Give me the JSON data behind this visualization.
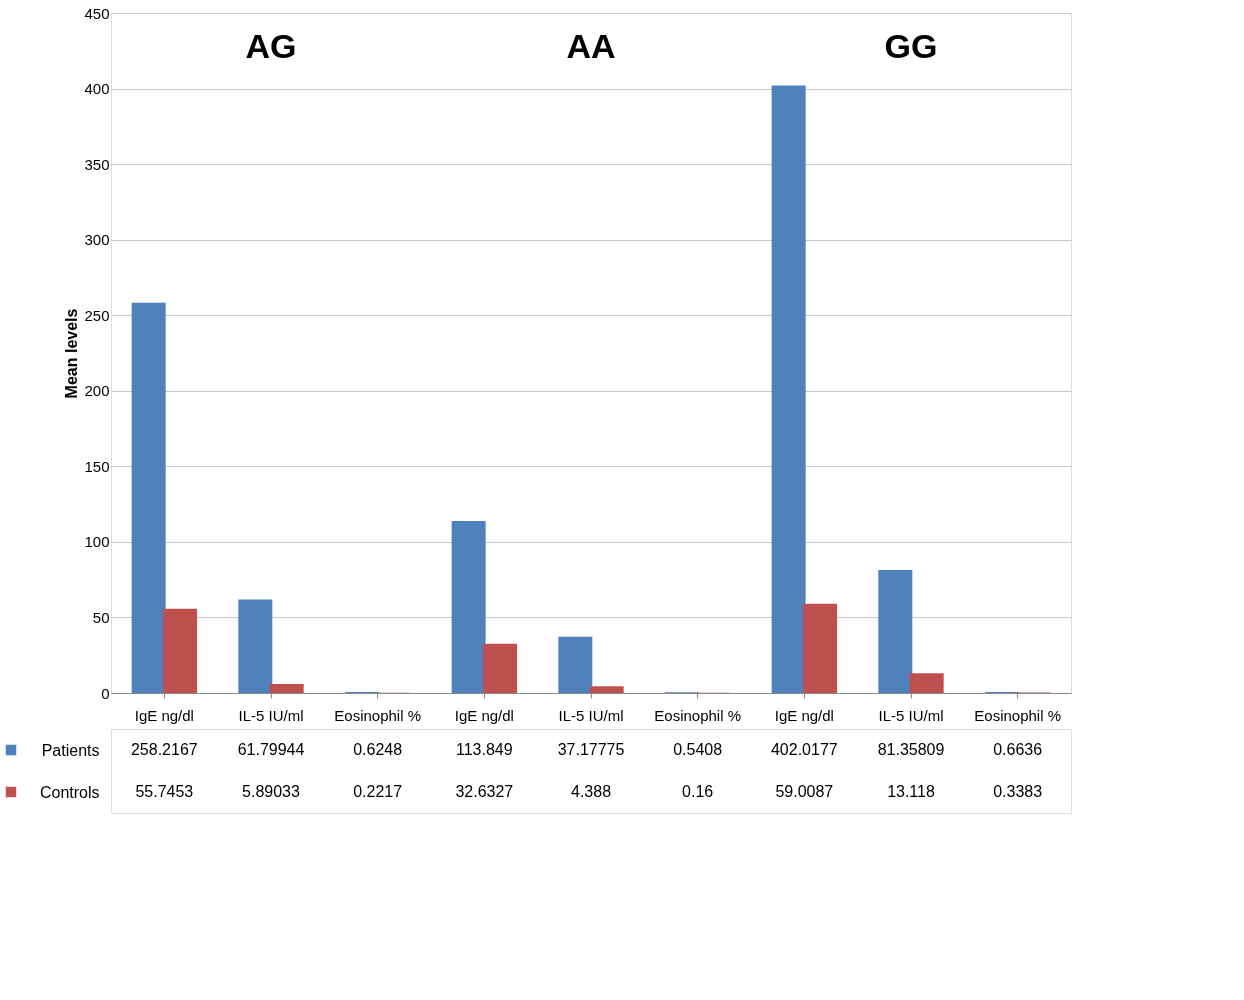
{
  "chart_data": {
    "type": "bar",
    "ylabel": "Mean levels",
    "categories": [
      "IgE ng/dl",
      "IL-5 IU/ml",
      "Eosinophil %",
      "IgE ng/dl",
      "IL-5 IU/ml",
      "Eosinophil %",
      "IgE ng/dl",
      "IL-5 IU/ml",
      "Eosinophil %"
    ],
    "series": [
      {
        "name": "Patients",
        "color": "#4f81bd",
        "values": [
          258.2167,
          61.79944,
          0.6248,
          113.849,
          37.17775,
          0.5408,
          402.0177,
          81.35809,
          0.6636
        ]
      },
      {
        "name": "Controls",
        "color": "#c0504d",
        "values": [
          55.7453,
          5.89033,
          0.2217,
          32.6327,
          4.388,
          0.16,
          59.0087,
          13.118,
          0.3383
        ]
      }
    ],
    "annotations": [
      "AG",
      "AA",
      "GG"
    ],
    "ylim": [
      0,
      450
    ],
    "yticks": [
      0,
      50,
      100,
      150,
      200,
      250,
      300,
      350,
      400,
      450
    ],
    "grid": "y",
    "legend": "bottom",
    "data_labels": true
  }
}
